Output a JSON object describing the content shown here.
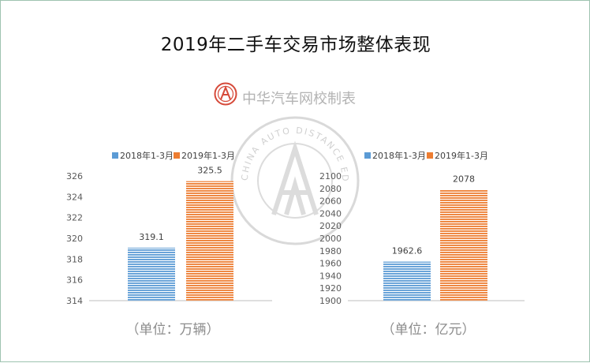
{
  "title": "2019年二手车交易市场整体表现",
  "watermark": {
    "brand": "中华汽车网校制表",
    "seal_text": "CHINA AUTO DISTANCE EDUCATION CENTER"
  },
  "colors": {
    "series_2018": "#5b9bd5",
    "series_2019": "#ed7d31",
    "axis_text": "#595959",
    "unit_text": "#8c8c8c"
  },
  "chart_data": [
    {
      "type": "bar",
      "categories": [
        ""
      ],
      "series": [
        {
          "name": "2018年1-3月",
          "values": [
            319.1
          ]
        },
        {
          "name": "2019年1-3月",
          "values": [
            325.5
          ]
        }
      ],
      "data_labels": [
        "319.1",
        "325.5"
      ],
      "unit_label": "（单位：万辆）",
      "ylim": [
        314,
        326
      ],
      "yticks": [
        314,
        316,
        318,
        320,
        322,
        324,
        326
      ],
      "grid": false,
      "legend": "top"
    },
    {
      "type": "bar",
      "categories": [
        ""
      ],
      "series": [
        {
          "name": "2018年1-3月",
          "values": [
            1962.6
          ]
        },
        {
          "name": "2019年1-3月",
          "values": [
            2078
          ]
        }
      ],
      "data_labels": [
        "1962.6",
        "2078"
      ],
      "unit_label": "（单位：亿元）",
      "ylim": [
        1900,
        2100
      ],
      "yticks": [
        1900,
        1920,
        1940,
        1960,
        1980,
        2000,
        2020,
        2040,
        2060,
        2080,
        2100
      ],
      "grid": false,
      "legend": "top"
    }
  ]
}
